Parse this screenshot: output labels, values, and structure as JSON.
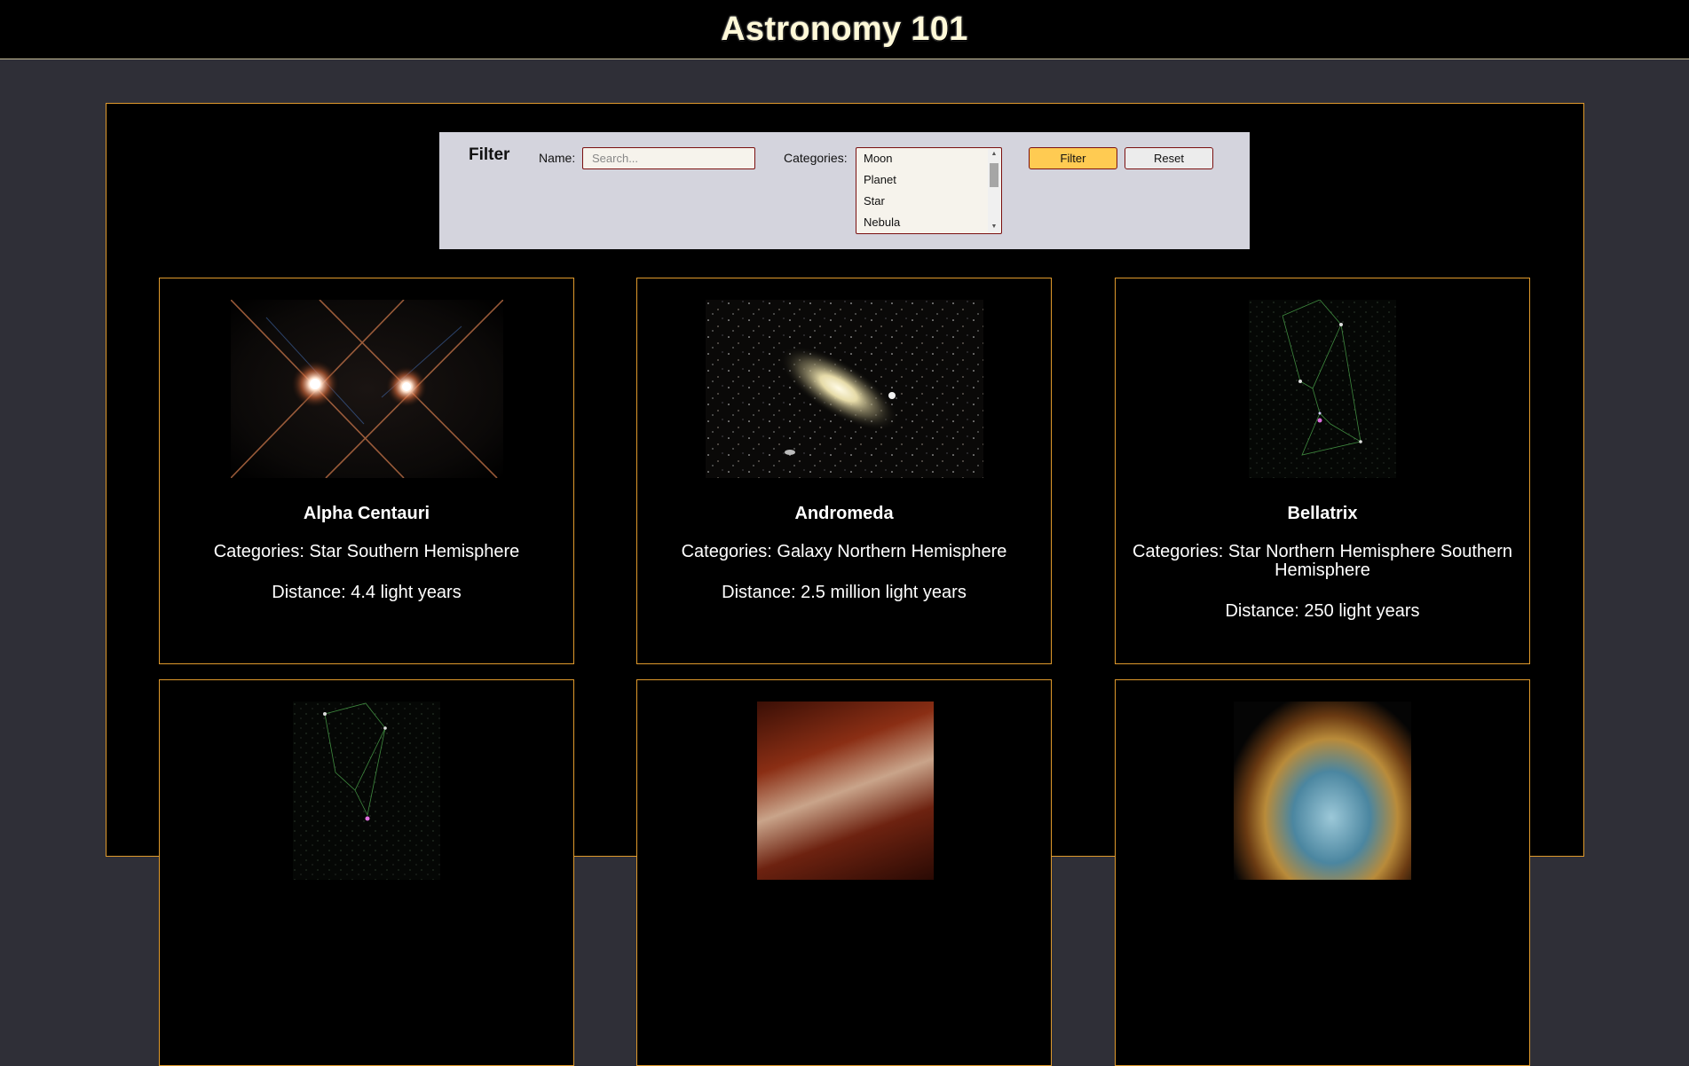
{
  "header": {
    "title": "Astronomy 101"
  },
  "filter": {
    "title": "Filter",
    "name_label": "Name:",
    "name_placeholder": "Search...",
    "name_value": "",
    "categories_label": "Categories:",
    "categories_options": [
      "Moon",
      "Planet",
      "Star",
      "Nebula"
    ],
    "filter_button": "Filter",
    "reset_button": "Reset"
  },
  "cards": [
    {
      "name": "Alpha Centauri",
      "categories": "Categories: Star Southern Hemisphere",
      "distance": "Distance: 4.4 light years",
      "image_icon": "binary-star-image"
    },
    {
      "name": "Andromeda",
      "categories": "Categories: Galaxy Northern Hemisphere",
      "distance": "Distance: 2.5 million light years",
      "image_icon": "galaxy-image"
    },
    {
      "name": "Bellatrix",
      "categories": "Categories: Star Northern Hemisphere Southern Hemisphere",
      "distance": "Distance: 250 light years",
      "image_icon": "constellation-chart-image"
    },
    {
      "name": "",
      "categories": "",
      "distance": "",
      "image_icon": "constellation-chart-image"
    },
    {
      "name": "",
      "categories": "",
      "distance": "",
      "image_icon": "nebula-image"
    },
    {
      "name": "",
      "categories": "",
      "distance": "",
      "image_icon": "supernova-remnant-image"
    }
  ],
  "colors": {
    "page_bg": "#2f2f37",
    "frame_border": "#e09a2c",
    "filter_button": "#ffcb52",
    "input_border": "#7a1010"
  }
}
